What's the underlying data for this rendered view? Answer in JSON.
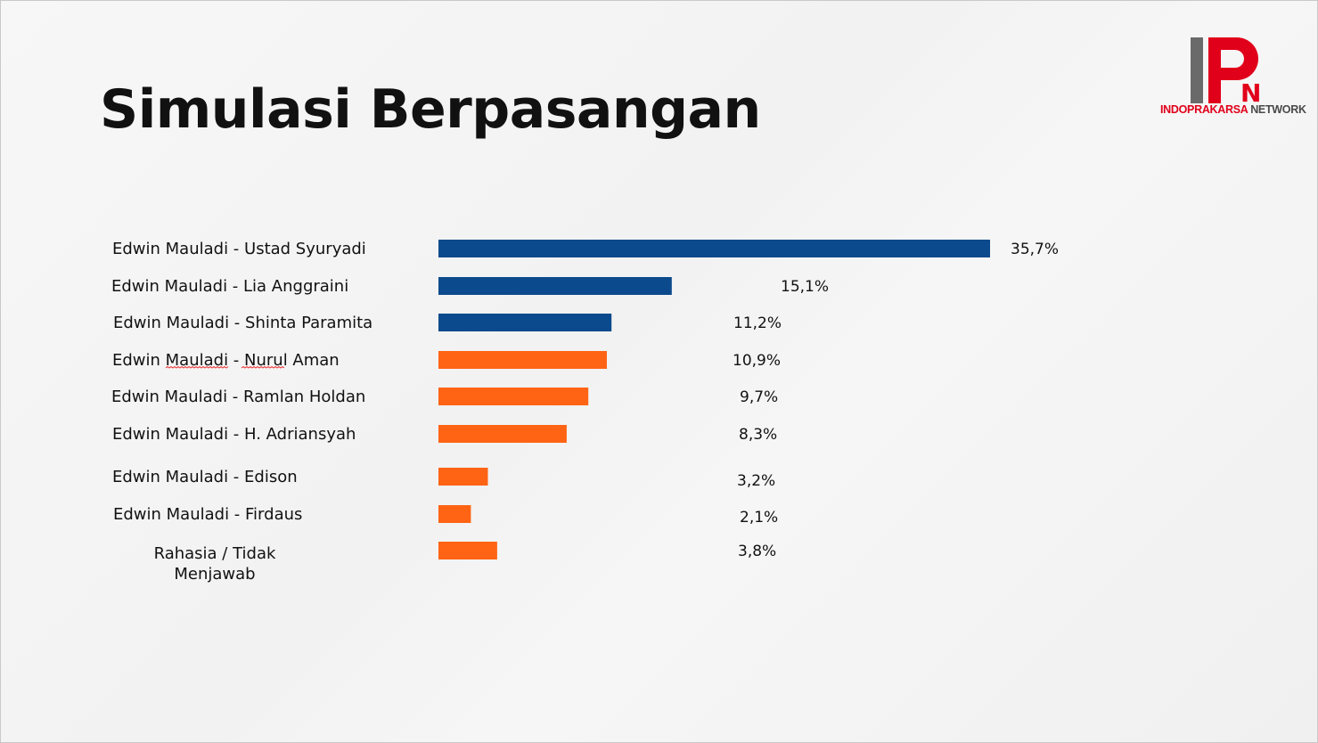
{
  "title": "Simulasi Berpasangan",
  "logo": {
    "text_red": "INDOPRAKARSA",
    "text_dark": " NETWORK",
    "mark_letter": "N"
  },
  "colors": {
    "blue": "#0b4a8c",
    "orange": "#ff6414",
    "logo_red": "#e1001a",
    "logo_gray": "#6a6a6a"
  },
  "chart_data": {
    "type": "bar",
    "orientation": "horizontal",
    "title": "Simulasi Berpasangan",
    "xlabel": "",
    "ylabel": "",
    "grid": false,
    "legend": "none",
    "categories": [
      "Edwin Mauladi - Ustad Syuryadi",
      "Edwin Mauladi - Lia Anggraini",
      "Edwin Mauladi - Shinta Paramita",
      "Edwin Mauladi - Nurul Aman",
      "Edwin Mauladi - Ramlan Holdan",
      "Edwin Mauladi - H. Adriansyah",
      "Edwin Mauladi - Edison",
      "Edwin Mauladi - Firdaus",
      "Rahasia / Tidak Menjawab"
    ],
    "values": [
      35.7,
      15.1,
      11.2,
      10.9,
      9.7,
      8.3,
      3.2,
      2.1,
      3.8
    ],
    "value_labels": [
      "35,7%",
      "15,1%",
      "11,2%",
      "10,9%",
      "9,7%",
      "8,3%",
      "3,2%",
      "2,1%",
      "3,8%"
    ],
    "bar_colors": [
      "#0b4a8c",
      "#0b4a8c",
      "#0b4a8c",
      "#ff6414",
      "#ff6414",
      "#ff6414",
      "#ff6414",
      "#ff6414",
      "#ff6414"
    ]
  }
}
